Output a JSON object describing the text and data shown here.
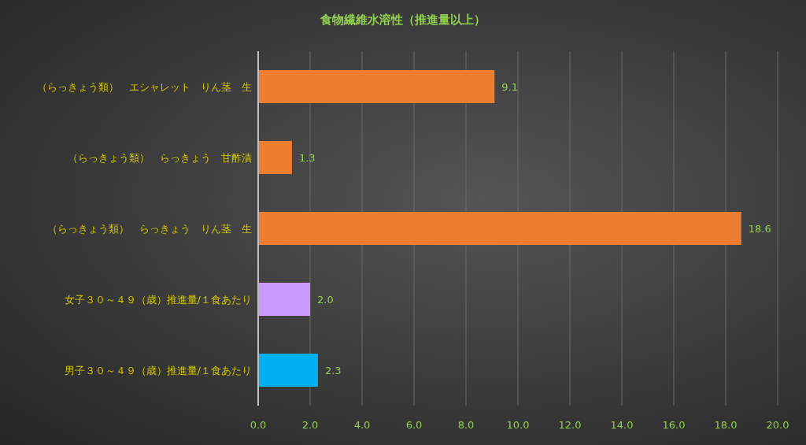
{
  "chart_data": {
    "type": "bar",
    "orientation": "horizontal",
    "title": "食物繊維水溶性（推進量以上）",
    "categories": [
      "（らっきょう類）　エシャレット　りん茎　生",
      "（らっきょう類）　らっきょう　甘酢漬",
      "（らっきょう類）　らっきょう　りん茎　生",
      "女子３０～４９（歳）推進量/１食あたり",
      "男子３０～４９（歳）推進量/１食あたり"
    ],
    "values": [
      9.1,
      1.3,
      18.6,
      2.0,
      2.3
    ],
    "value_labels": [
      "9.1",
      "1.3",
      "18.6",
      "2.0",
      "2.3"
    ],
    "colors": [
      "#ed7d31",
      "#ed7d31",
      "#ed7d31",
      "#cc99ff",
      "#00b0f0"
    ],
    "xlim": [
      0,
      20
    ],
    "xticks": [
      {
        "value": 0,
        "label": "0.0"
      },
      {
        "value": 2,
        "label": "2.0"
      },
      {
        "value": 4,
        "label": "4.0"
      },
      {
        "value": 6,
        "label": "6.0"
      },
      {
        "value": 8,
        "label": "8.0"
      },
      {
        "value": 10,
        "label": "10.0"
      },
      {
        "value": 12,
        "label": "12.0"
      },
      {
        "value": 14,
        "label": "14.0"
      },
      {
        "value": 16,
        "label": "16.0"
      },
      {
        "value": 18,
        "label": "18.0"
      },
      {
        "value": 20,
        "label": "20.0"
      }
    ],
    "grid": "x",
    "legend": false
  }
}
